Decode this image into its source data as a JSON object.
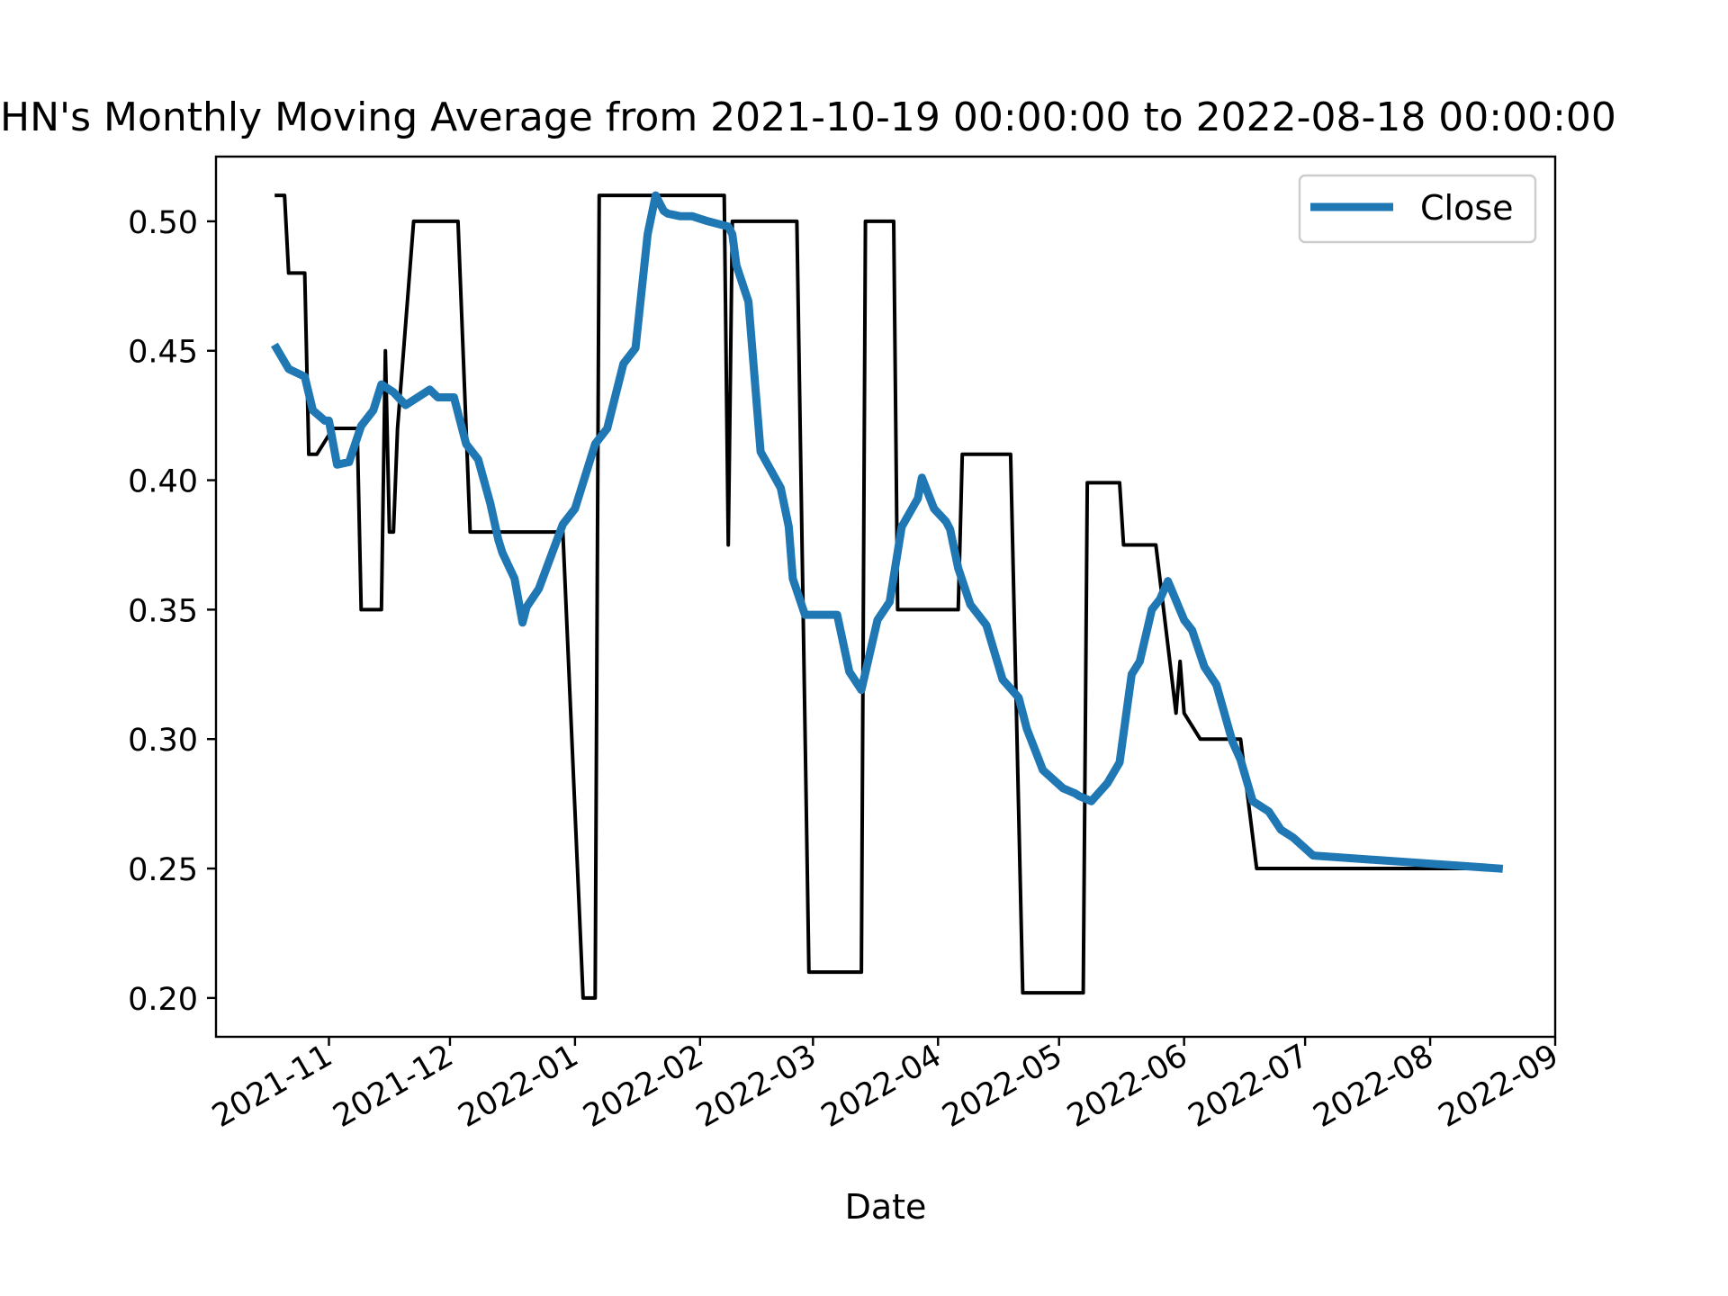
{
  "chart_data": {
    "type": "line",
    "title": "HN's Monthly Moving Average from 2021-10-19 00:00:00 to 2022-08-18 00:00:00",
    "xlabel": "Date",
    "ylabel": "",
    "xlim": [
      "2021-10-04",
      "2022-09-01"
    ],
    "ylim": [
      0.185,
      0.525
    ],
    "x_ticks": [
      "2021-11-01",
      "2021-12-01",
      "2022-01-01",
      "2022-02-01",
      "2022-03-01",
      "2022-04-01",
      "2022-05-01",
      "2022-06-01",
      "2022-07-01",
      "2022-08-01",
      "2022-09-01"
    ],
    "x_tick_labels": [
      "2021-11",
      "2021-12",
      "2022-01",
      "2022-02",
      "2022-03",
      "2022-04",
      "2022-05",
      "2022-06",
      "2022-07",
      "2022-08",
      "2022-09"
    ],
    "y_ticks": [
      0.2,
      0.25,
      0.3,
      0.35,
      0.4,
      0.45,
      0.5
    ],
    "y_tick_labels": [
      "0.20",
      "0.25",
      "0.30",
      "0.35",
      "0.40",
      "0.45",
      "0.50"
    ],
    "grid": false,
    "legend": {
      "placement": "top-right",
      "entries": [
        "Close"
      ]
    },
    "series": [
      {
        "name": "",
        "color": "#000000",
        "x": [
          "2021-10-19",
          "2021-10-21",
          "2021-10-22",
          "2021-10-26",
          "2021-10-27",
          "2021-10-29",
          "2021-11-02",
          "2021-11-08",
          "2021-11-09",
          "2021-11-14",
          "2021-11-15",
          "2021-11-16",
          "2021-11-17",
          "2021-11-18",
          "2021-11-22",
          "2021-12-03",
          "2021-12-06",
          "2021-12-29",
          "2022-01-03",
          "2022-01-06",
          "2022-01-07",
          "2022-02-06",
          "2022-02-07",
          "2022-02-08",
          "2022-02-09",
          "2022-02-25",
          "2022-02-28",
          "2022-03-13",
          "2022-03-14",
          "2022-03-21",
          "2022-03-22",
          "2022-04-06",
          "2022-04-07",
          "2022-04-19",
          "2022-04-22",
          "2022-05-07",
          "2022-05-08",
          "2022-05-16",
          "2022-05-17",
          "2022-05-25",
          "2022-05-30",
          "2022-05-31",
          "2022-06-01",
          "2022-06-05",
          "2022-06-15",
          "2022-06-19",
          "2022-06-30",
          "2022-08-18"
        ],
        "values": [
          0.51,
          0.51,
          0.48,
          0.48,
          0.41,
          0.41,
          0.42,
          0.42,
          0.35,
          0.35,
          0.45,
          0.38,
          0.38,
          0.42,
          0.5,
          0.5,
          0.38,
          0.38,
          0.2,
          0.2,
          0.51,
          0.51,
          0.51,
          0.375,
          0.5,
          0.5,
          0.21,
          0.21,
          0.5,
          0.5,
          0.35,
          0.35,
          0.41,
          0.41,
          0.202,
          0.202,
          0.399,
          0.399,
          0.375,
          0.375,
          0.31,
          0.33,
          0.31,
          0.3,
          0.3,
          0.25,
          0.25,
          0.25
        ]
      },
      {
        "name": "Close",
        "color": "#1f77b4",
        "x": [
          "2021-10-19",
          "2021-10-22",
          "2021-10-26",
          "2021-10-28",
          "2021-10-31",
          "2021-11-01",
          "2021-11-03",
          "2021-11-06",
          "2021-11-09",
          "2021-11-12",
          "2021-11-14",
          "2021-11-17",
          "2021-11-20",
          "2021-11-23",
          "2021-11-26",
          "2021-11-28",
          "2021-11-29",
          "2021-12-02",
          "2021-12-05",
          "2021-12-08",
          "2021-12-11",
          "2021-12-13",
          "2021-12-14",
          "2021-12-17",
          "2021-12-19",
          "2021-12-20",
          "2021-12-23",
          "2021-12-29",
          "2022-01-01",
          "2022-01-06",
          "2022-01-09",
          "2022-01-13",
          "2022-01-16",
          "2022-01-19",
          "2022-01-21",
          "2022-01-23",
          "2022-01-24",
          "2022-01-27",
          "2022-01-30",
          "2022-02-03",
          "2022-02-08",
          "2022-02-09",
          "2022-02-10",
          "2022-02-13",
          "2022-02-16",
          "2022-02-21",
          "2022-02-23",
          "2022-02-24",
          "2022-02-27",
          "2022-03-02",
          "2022-03-07",
          "2022-03-10",
          "2022-03-13",
          "2022-03-17",
          "2022-03-20",
          "2022-03-23",
          "2022-03-27",
          "2022-03-28",
          "2022-03-31",
          "2022-04-03",
          "2022-04-04",
          "2022-04-06",
          "2022-04-09",
          "2022-04-13",
          "2022-04-17",
          "2022-04-21",
          "2022-04-23",
          "2022-04-27",
          "2022-05-02",
          "2022-05-05",
          "2022-05-06",
          "2022-05-09",
          "2022-05-13",
          "2022-05-16",
          "2022-05-19",
          "2022-05-21",
          "2022-05-24",
          "2022-05-26",
          "2022-05-28",
          "2022-06-01",
          "2022-06-03",
          "2022-06-06",
          "2022-06-09",
          "2022-06-13",
          "2022-06-15",
          "2022-06-18",
          "2022-06-22",
          "2022-06-25",
          "2022-06-28",
          "2022-07-03",
          "2022-08-18"
        ],
        "values": [
          0.451,
          0.443,
          0.44,
          0.427,
          0.423,
          0.423,
          0.406,
          0.407,
          0.421,
          0.427,
          0.437,
          0.434,
          0.429,
          0.432,
          0.435,
          0.432,
          0.432,
          0.432,
          0.414,
          0.408,
          0.391,
          0.377,
          0.372,
          0.362,
          0.345,
          0.351,
          0.358,
          0.383,
          0.389,
          0.414,
          0.42,
          0.445,
          0.451,
          0.495,
          0.51,
          0.504,
          0.503,
          0.502,
          0.502,
          0.5,
          0.498,
          0.495,
          0.483,
          0.469,
          0.411,
          0.397,
          0.382,
          0.362,
          0.348,
          0.348,
          0.348,
          0.326,
          0.319,
          0.346,
          0.353,
          0.382,
          0.393,
          0.401,
          0.389,
          0.384,
          0.381,
          0.366,
          0.352,
          0.344,
          0.323,
          0.316,
          0.304,
          0.288,
          0.281,
          0.279,
          0.278,
          0.276,
          0.283,
          0.291,
          0.325,
          0.33,
          0.35,
          0.354,
          0.361,
          0.346,
          0.342,
          0.328,
          0.321,
          0.299,
          0.292,
          0.276,
          0.272,
          0.265,
          0.262,
          0.255,
          0.25
        ]
      }
    ]
  }
}
